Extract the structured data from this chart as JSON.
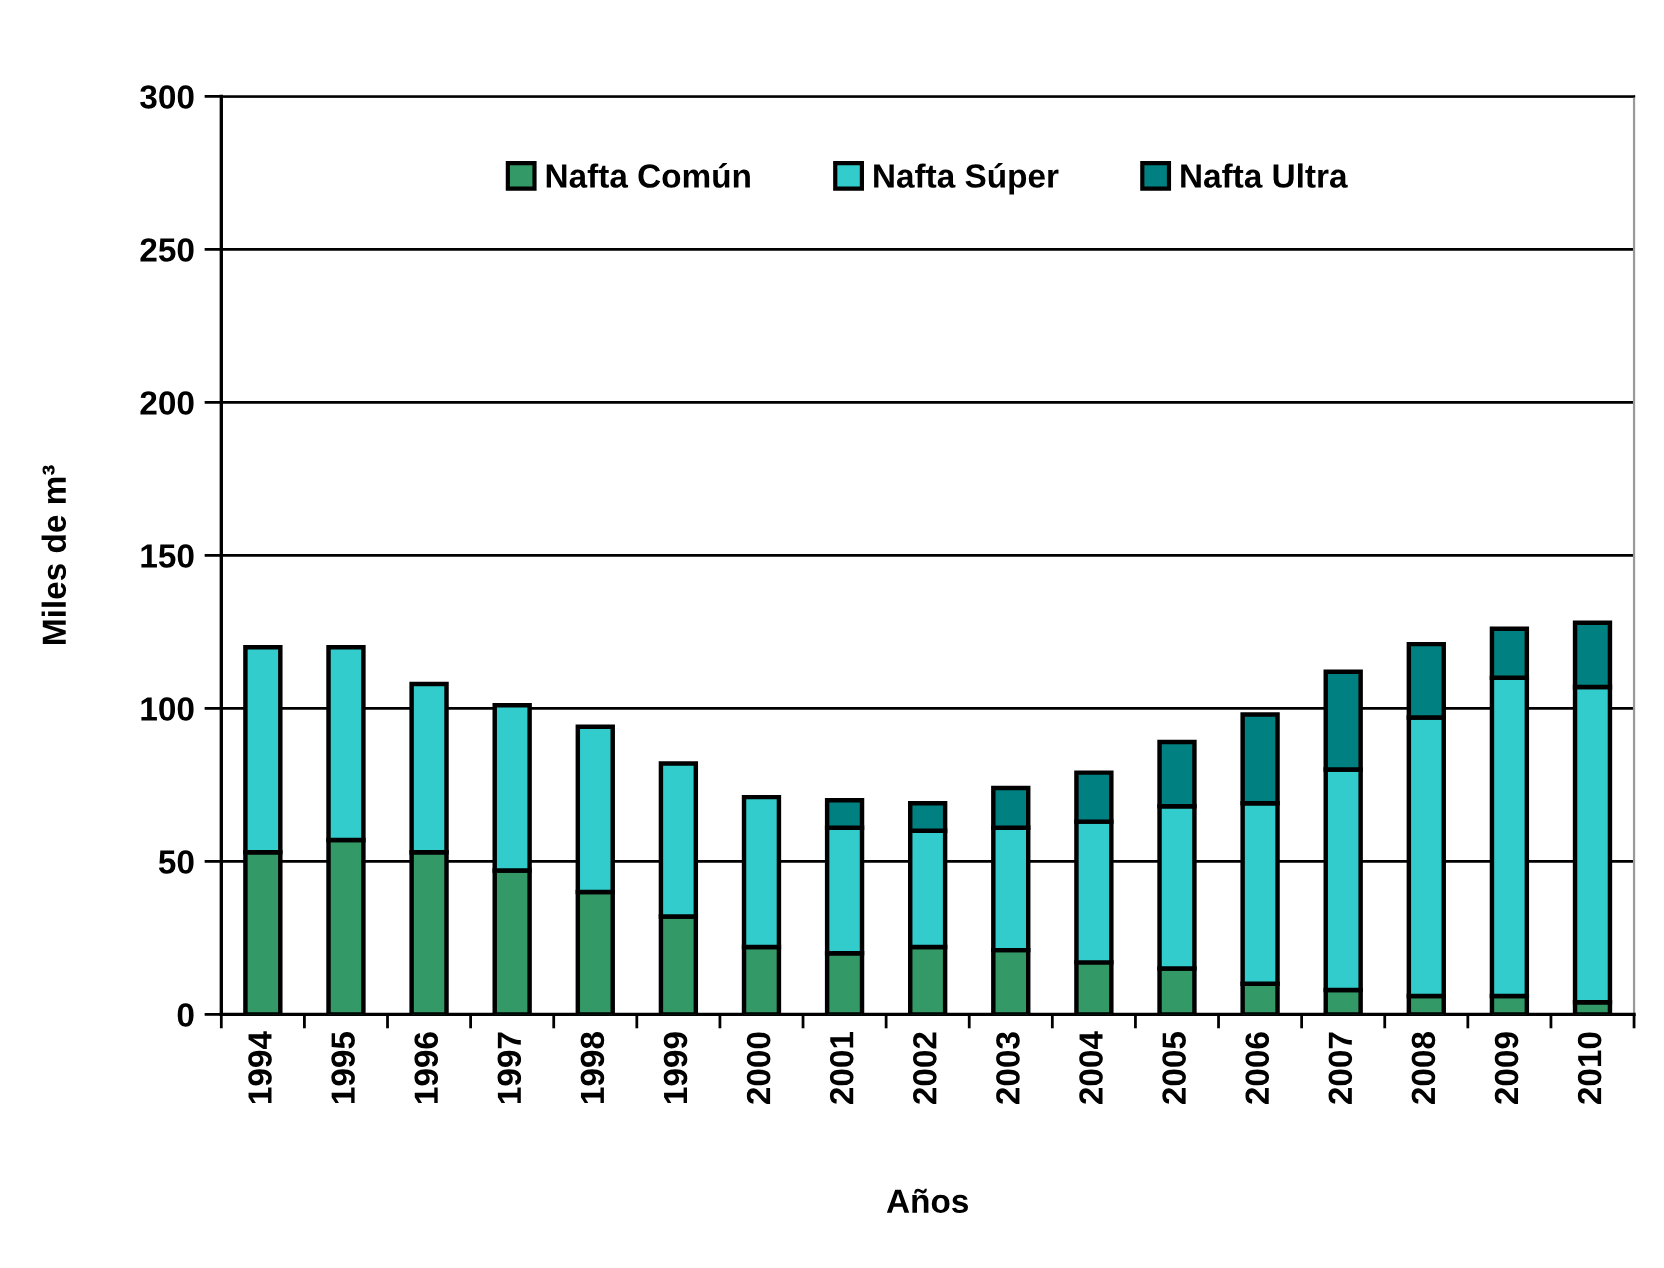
{
  "chart_data": {
    "type": "bar",
    "stacked": true,
    "categories": [
      "1994",
      "1995",
      "1996",
      "1997",
      "1998",
      "1999",
      "2000",
      "2001",
      "2002",
      "2003",
      "2004",
      "2005",
      "2006",
      "2007",
      "2008",
      "2009",
      "2010"
    ],
    "series": [
      {
        "name": "Nafta Común",
        "color": "#339966",
        "values": [
          53,
          57,
          53,
          47,
          40,
          32,
          22,
          20,
          22,
          21,
          17,
          15,
          10,
          8,
          6,
          6,
          4
        ]
      },
      {
        "name": "Nafta Súper",
        "color": "#33cccc",
        "values": [
          67,
          63,
          55,
          54,
          54,
          50,
          49,
          41,
          38,
          40,
          46,
          53,
          59,
          72,
          91,
          104,
          103
        ]
      },
      {
        "name": "Nafta Ultra",
        "color": "#008080",
        "values": [
          null,
          null,
          null,
          null,
          null,
          null,
          null,
          9,
          9,
          13,
          16,
          21,
          29,
          32,
          24,
          16,
          21
        ]
      }
    ],
    "xlabel": "Años",
    "ylabel": "Miles de m³",
    "ylim": [
      0,
      300
    ],
    "yticks": [
      0,
      50,
      100,
      150,
      200,
      250,
      300
    ],
    "grid": "y",
    "legend": "top"
  }
}
